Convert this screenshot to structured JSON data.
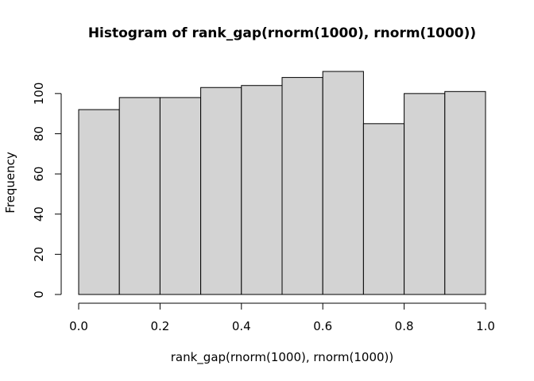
{
  "chart_data": {
    "type": "bar",
    "title": "Histogram of rank_gap(rnorm(1000), rnorm(1000))",
    "xlabel": "rank_gap(rnorm(1000), rnorm(1000))",
    "ylabel": "Frequency",
    "bins": [
      {
        "start": 0.0,
        "end": 0.1,
        "count": 92
      },
      {
        "start": 0.1,
        "end": 0.2,
        "count": 98
      },
      {
        "start": 0.2,
        "end": 0.3,
        "count": 98
      },
      {
        "start": 0.3,
        "end": 0.4,
        "count": 103
      },
      {
        "start": 0.4,
        "end": 0.5,
        "count": 104
      },
      {
        "start": 0.5,
        "end": 0.6,
        "count": 108
      },
      {
        "start": 0.6,
        "end": 0.7,
        "count": 111
      },
      {
        "start": 0.7,
        "end": 0.8,
        "count": 85
      },
      {
        "start": 0.8,
        "end": 0.9,
        "count": 100
      },
      {
        "start": 0.9,
        "end": 1.0,
        "count": 101
      }
    ],
    "xlim": [
      0.0,
      1.0
    ],
    "ylim": [
      0,
      111
    ],
    "x_ticks": [
      0.0,
      0.2,
      0.4,
      0.6,
      0.8,
      1.0
    ],
    "x_tick_labels": [
      "0.0",
      "0.2",
      "0.4",
      "0.6",
      "0.8",
      "1.0"
    ],
    "y_ticks": [
      0,
      20,
      40,
      60,
      80,
      100
    ],
    "y_tick_labels": [
      "0",
      "20",
      "40",
      "60",
      "80",
      "100"
    ],
    "bar_color": "#d3d3d3",
    "grid": false,
    "legend": "none"
  }
}
